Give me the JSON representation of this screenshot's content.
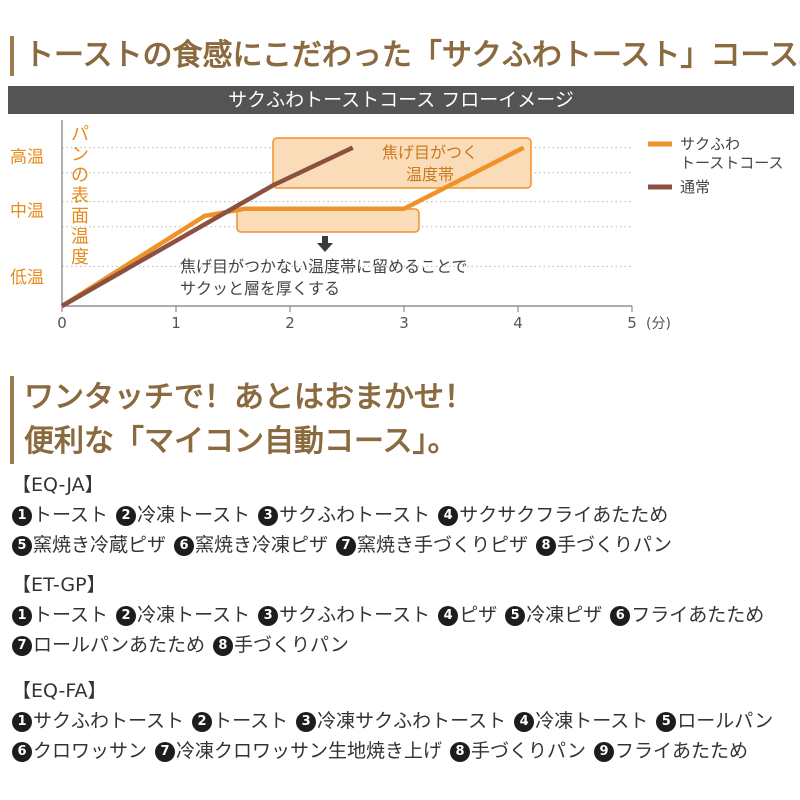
{
  "heading1": "トーストの食感にこだわった「サクふわトースト」コース。",
  "band_title": "サクふわトーストコース フローイメージ",
  "heading2": [
    "ワンタッチで！あとはおまかせ！",
    "便利な「マイコン自動コース」。"
  ],
  "chart_data": {
    "type": "line",
    "x_unit": "(分)",
    "xlim": [
      0,
      5
    ],
    "x_ticks": [
      "0",
      "1",
      "2",
      "3",
      "4",
      "5"
    ],
    "y_ticks": [
      "高温",
      "中温",
      "低温"
    ],
    "ylabel": "パンの表面温度",
    "series": [
      {
        "name": "サクふわ\nトーストコース",
        "color": "#f0922a",
        "x": [
          0,
          1.25,
          1.6,
          3.0,
          4.05
        ],
        "y": [
          0,
          0.5,
          0.54,
          0.54,
          0.88
        ]
      },
      {
        "name": "通常",
        "color": "#8a5040",
        "x": [
          0,
          1.85,
          2.55
        ],
        "y": [
          0,
          0.67,
          0.88
        ]
      }
    ],
    "annotations": {
      "browning_zone": "焦げ目がつく\n温度帯",
      "hold_note": "焦げ目がつかない温度帯に留めることで\nサクッと層を厚くする"
    },
    "legend_placement": "right",
    "grid": "dotted horizontal"
  },
  "models": [
    {
      "name": "【EQ-JA】",
      "lines": [
        [
          [
            "1",
            "トースト"
          ],
          [
            "2",
            "冷凍トースト"
          ],
          [
            "3",
            "サクふわトースト"
          ],
          [
            "4",
            "サクサクフライあたため"
          ]
        ],
        [
          [
            "5",
            "窯焼き冷蔵ピザ"
          ],
          [
            "6",
            "窯焼き冷凍ピザ"
          ],
          [
            "7",
            "窯焼き手づくりピザ"
          ],
          [
            "8",
            "手づくりパン"
          ]
        ]
      ]
    },
    {
      "name": "【ET-GP】",
      "lines": [
        [
          [
            "1",
            "トースト"
          ],
          [
            "2",
            "冷凍トースト"
          ],
          [
            "3",
            "サクふわトースト"
          ],
          [
            "4",
            "ピザ"
          ],
          [
            "5",
            "冷凍ピザ"
          ],
          [
            "6",
            "フライあたため"
          ]
        ],
        [
          [
            "7",
            "ロールパンあたため"
          ],
          [
            "8",
            "手づくりパン"
          ]
        ]
      ]
    },
    {
      "name": "【EQ-FA】",
      "lines": [
        [
          [
            "1",
            "サクふわトースト"
          ],
          [
            "2",
            "トースト"
          ],
          [
            "3",
            "冷凍サクふわトースト"
          ],
          [
            "4",
            "冷凍トースト"
          ],
          [
            "5",
            "ロールパン"
          ]
        ],
        [
          [
            "6",
            "クロワッサン"
          ],
          [
            "7",
            "冷凍クロワッサン生地焼き上げ"
          ],
          [
            "8",
            "手づくりパン"
          ],
          [
            "9",
            "フライあたため"
          ]
        ]
      ]
    }
  ]
}
